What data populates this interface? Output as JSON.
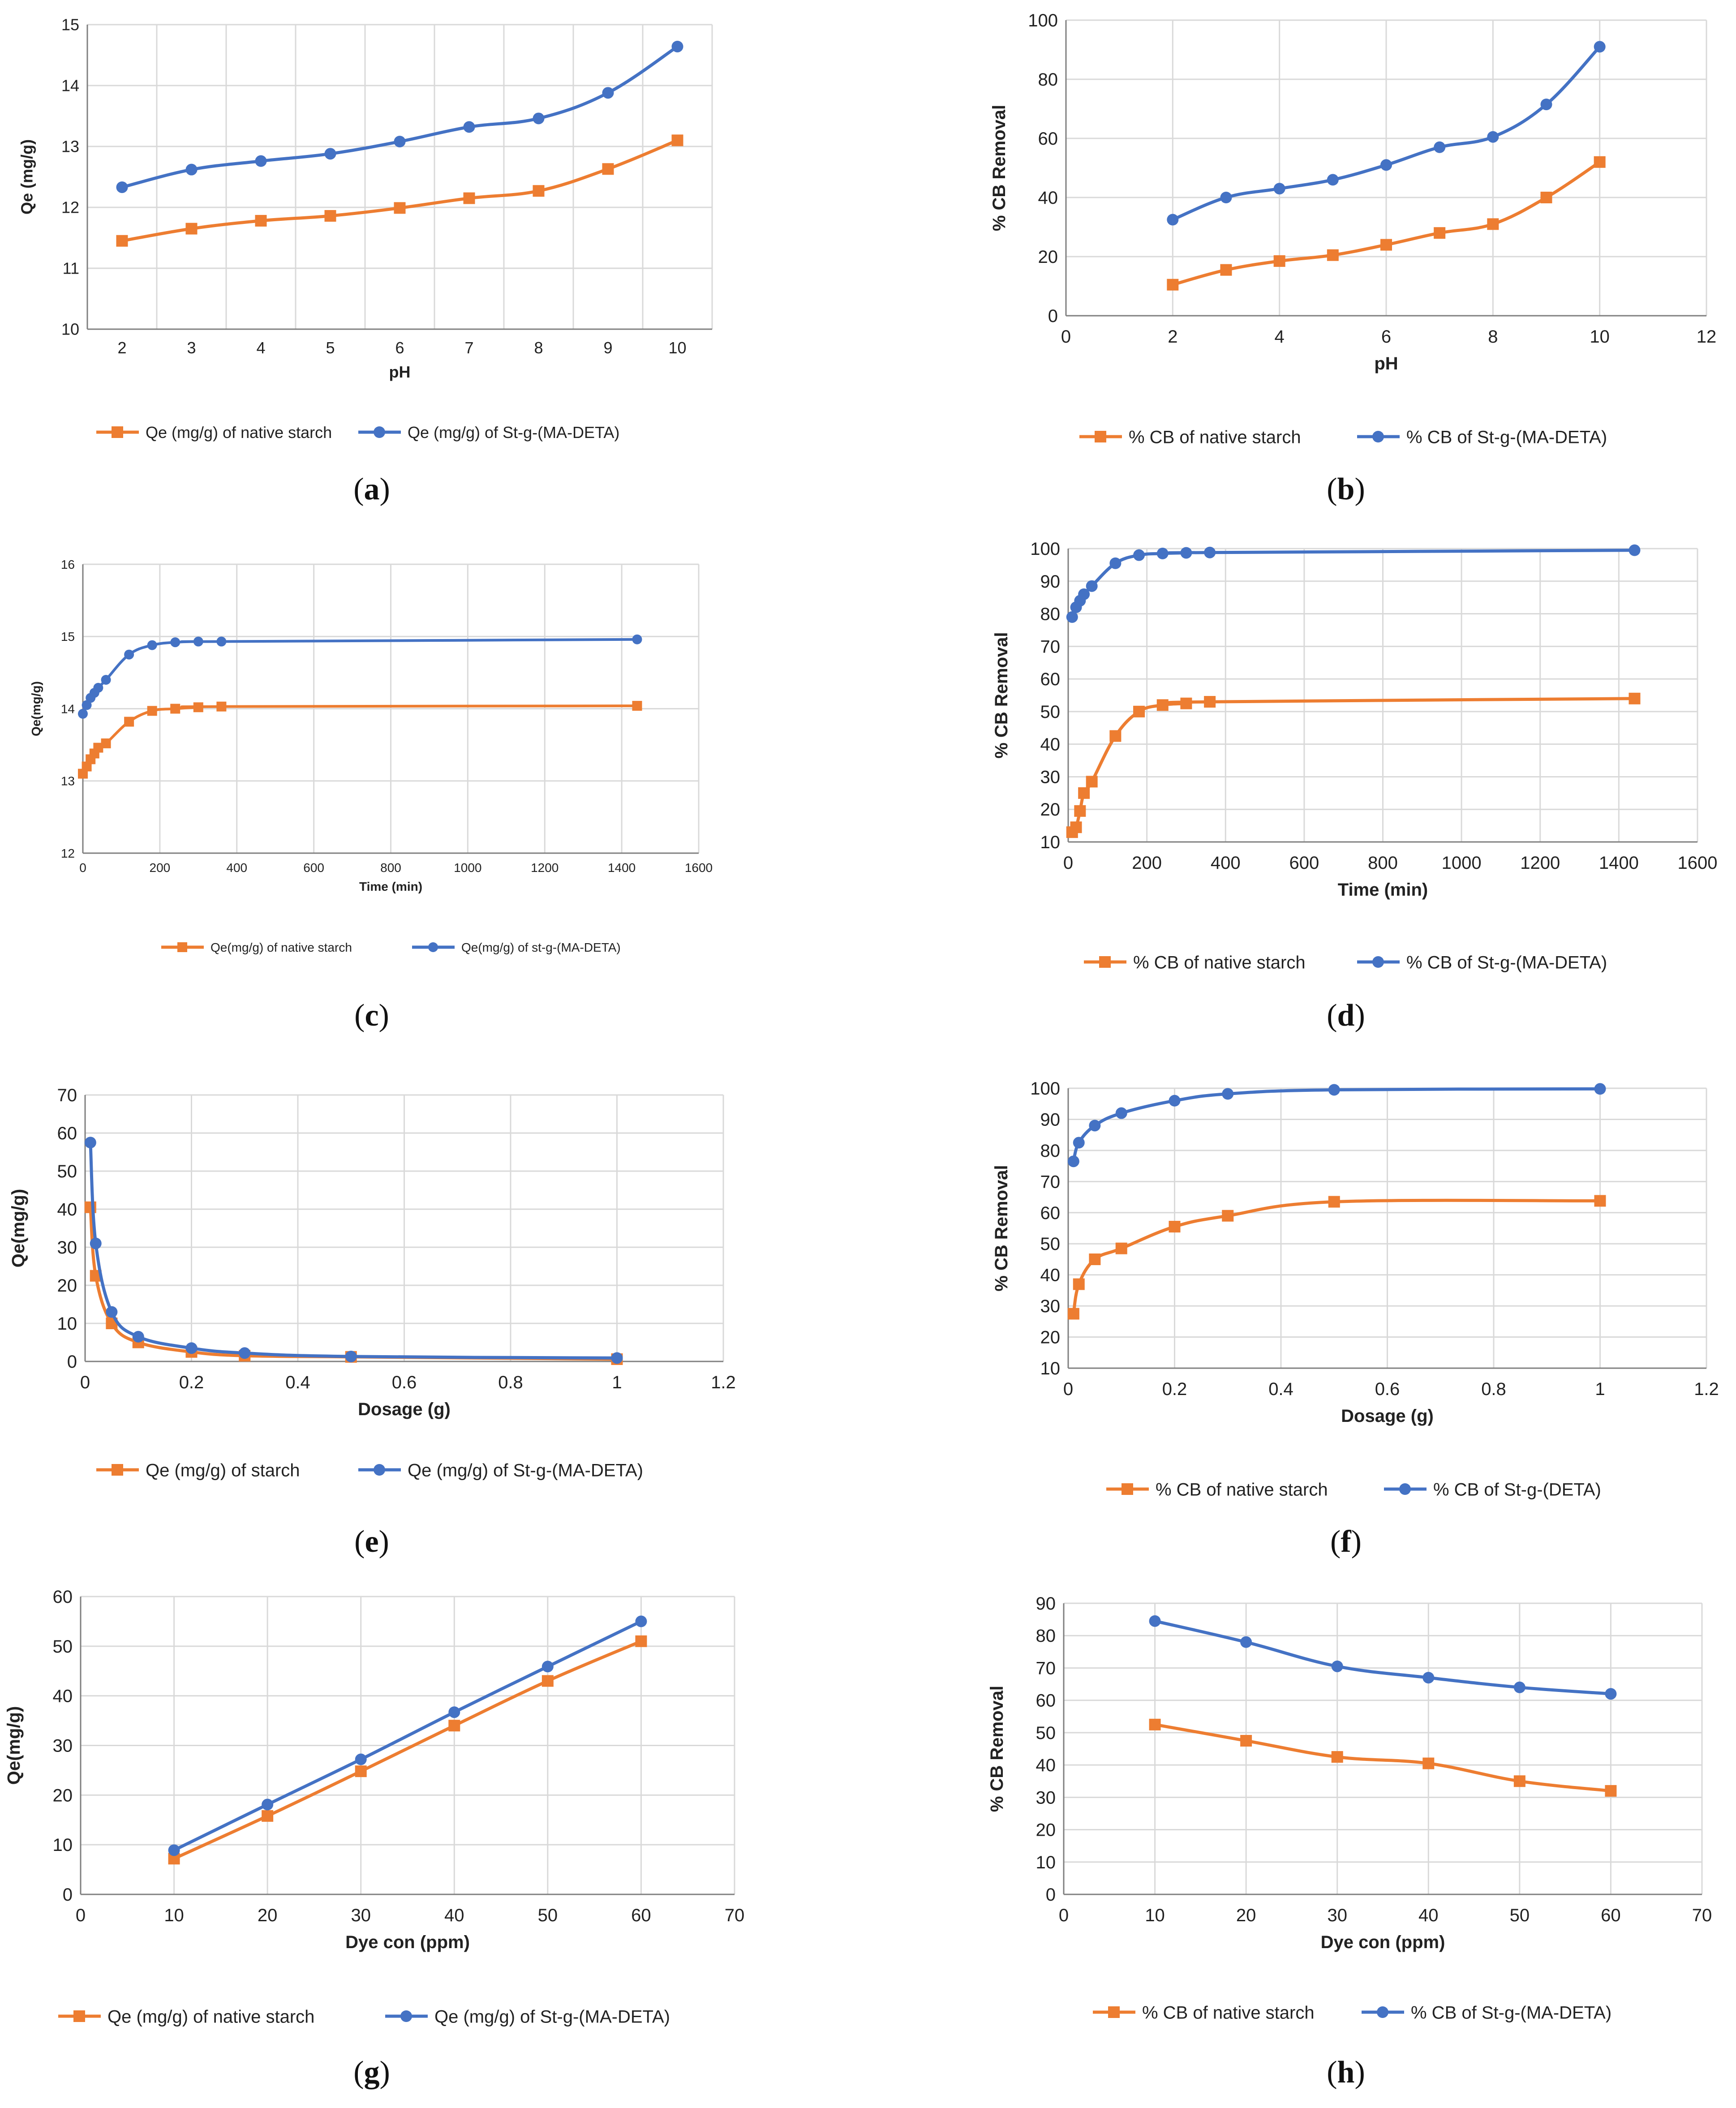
{
  "colors": {
    "native": "#ED7D31",
    "grafted": "#4472C4",
    "grid": "#D9D9D9",
    "axis": "#7F7F7F"
  },
  "chart_data": [
    {
      "id": "a",
      "type": "line",
      "panel_label": "(a)",
      "panel_letter": "a",
      "xlabel": "pH",
      "ylabel": "Qe (mg/g)",
      "xlim": [
        1.5,
        10.5
      ],
      "ylim": [
        10,
        15
      ],
      "xticks": [
        2,
        3,
        4,
        5,
        6,
        7,
        8,
        9,
        10
      ],
      "yticks": [
        10,
        11,
        12,
        13,
        14,
        15
      ],
      "xgrid": "band",
      "series": [
        {
          "name": "Qe (mg/g) of native starch",
          "marker": "square",
          "color": "#ED7D31",
          "x": [
            2,
            3,
            4,
            5,
            6,
            7,
            8,
            9,
            10
          ],
          "y": [
            11.45,
            11.65,
            11.78,
            11.86,
            11.99,
            12.15,
            12.27,
            12.63,
            13.1
          ]
        },
        {
          "name": "Qe (mg/g) of St-g-(MA-DETA)",
          "marker": "circle",
          "color": "#4472C4",
          "x": [
            2,
            3,
            4,
            5,
            6,
            7,
            8,
            9,
            10
          ],
          "y": [
            12.33,
            12.62,
            12.76,
            12.88,
            13.08,
            13.32,
            13.46,
            13.88,
            14.64
          ]
        }
      ]
    },
    {
      "id": "b",
      "type": "line",
      "panel_label": "(b)",
      "panel_letter": "b",
      "xlabel": "pH",
      "ylabel": "% CB Removal",
      "xlim": [
        0,
        12
      ],
      "ylim": [
        0,
        100
      ],
      "xticks": [
        0,
        2,
        4,
        6,
        8,
        10,
        12
      ],
      "yticks": [
        0,
        20,
        40,
        60,
        80,
        100
      ],
      "series": [
        {
          "name": "% CB of native starch",
          "marker": "square",
          "color": "#ED7D31",
          "x": [
            2,
            3,
            4,
            5,
            6,
            7,
            8,
            9,
            10
          ],
          "y": [
            10.5,
            15.5,
            18.5,
            20.5,
            24,
            28,
            31,
            40,
            52
          ]
        },
        {
          "name": "% CB of St-g-(MA-DETA)",
          "marker": "circle",
          "color": "#4472C4",
          "x": [
            2,
            3,
            4,
            5,
            6,
            7,
            8,
            9,
            10
          ],
          "y": [
            32.5,
            40,
            43,
            46,
            51,
            57,
            60.5,
            71.5,
            91
          ]
        }
      ]
    },
    {
      "id": "c",
      "type": "line",
      "panel_label": "(c)",
      "panel_letter": "c",
      "xlabel": "Time (min)",
      "ylabel": "Qe(mg/g)",
      "xlim": [
        0,
        1600
      ],
      "ylim": [
        12,
        16
      ],
      "xticks": [
        0,
        200,
        400,
        600,
        800,
        1000,
        1200,
        1400,
        1600
      ],
      "yticks": [
        12,
        13,
        14,
        15,
        16
      ],
      "series": [
        {
          "name": "Qe(mg/g) of native starch",
          "marker": "square",
          "color": "#ED7D31",
          "x": [
            0,
            10,
            20,
            30,
            40,
            60,
            120,
            180,
            240,
            300,
            360,
            1440
          ],
          "y": [
            13.1,
            13.2,
            13.3,
            13.38,
            13.46,
            13.52,
            13.82,
            13.97,
            14.0,
            14.02,
            14.03,
            14.04
          ]
        },
        {
          "name": "Qe(mg/g) of st-g-(MA-DETA)",
          "marker": "circle",
          "color": "#4472C4",
          "x": [
            0,
            10,
            20,
            30,
            40,
            60,
            120,
            180,
            240,
            300,
            360,
            1440
          ],
          "y": [
            13.93,
            14.05,
            14.15,
            14.22,
            14.29,
            14.4,
            14.75,
            14.88,
            14.92,
            14.93,
            14.93,
            14.96
          ]
        }
      ]
    },
    {
      "id": "d",
      "type": "line",
      "panel_label": "(d)",
      "panel_letter": "d",
      "xlabel": "Time (min)",
      "ylabel": "% CB Removal",
      "xlim": [
        0,
        1600
      ],
      "ylim": [
        10,
        100
      ],
      "xticks": [
        0,
        200,
        400,
        600,
        800,
        1000,
        1200,
        1400,
        1600
      ],
      "yticks": [
        10,
        20,
        30,
        40,
        50,
        60,
        70,
        80,
        90,
        100
      ],
      "series": [
        {
          "name": "% CB of native starch",
          "marker": "square",
          "color": "#ED7D31",
          "x": [
            10,
            20,
            30,
            40,
            60,
            120,
            180,
            240,
            300,
            360,
            1440
          ],
          "y": [
            13,
            14.5,
            19.5,
            25,
            28.5,
            42.5,
            50,
            52,
            52.5,
            53,
            54
          ]
        },
        {
          "name": "% CB of St-g-(MA-DETA)",
          "marker": "circle",
          "color": "#4472C4",
          "x": [
            10,
            20,
            30,
            40,
            60,
            120,
            180,
            240,
            300,
            360,
            1440
          ],
          "y": [
            79,
            82,
            84,
            86,
            88.5,
            95.5,
            98,
            98.5,
            98.7,
            98.8,
            99.5
          ]
        }
      ]
    },
    {
      "id": "e",
      "type": "line",
      "panel_label": "(e)",
      "panel_letter": "e",
      "xlabel": "Dosage (g)",
      "ylabel": "Qe(mg/g)",
      "xlim": [
        0,
        1.2
      ],
      "ylim": [
        0,
        70
      ],
      "xticks": [
        0,
        0.2,
        0.4,
        0.6,
        0.8,
        1,
        1.2
      ],
      "yticks": [
        0,
        10,
        20,
        30,
        40,
        50,
        60,
        70
      ],
      "series": [
        {
          "name": "Qe (mg/g) of starch",
          "marker": "square",
          "color": "#ED7D31",
          "x": [
            0.01,
            0.02,
            0.05,
            0.1,
            0.2,
            0.3,
            0.5,
            1
          ],
          "y": [
            40.5,
            22.5,
            10,
            5,
            2.5,
            1.5,
            1.2,
            0.6
          ]
        },
        {
          "name": "Qe (mg/g) of St-g-(MA-DETA)",
          "marker": "circle",
          "color": "#4472C4",
          "x": [
            0.01,
            0.02,
            0.05,
            0.1,
            0.2,
            0.3,
            0.5,
            1
          ],
          "y": [
            57.5,
            31,
            13,
            6.5,
            3.5,
            2.2,
            1.3,
            0.9
          ]
        }
      ]
    },
    {
      "id": "f",
      "type": "line",
      "panel_label": "(f)",
      "panel_letter": "f",
      "xlabel": "Dosage (g)",
      "ylabel": "% CB Removal",
      "xlim": [
        0,
        1.2
      ],
      "ylim": [
        10,
        100
      ],
      "xticks": [
        0,
        0.2,
        0.4,
        0.6,
        0.8,
        1,
        1.2
      ],
      "yticks": [
        10,
        20,
        30,
        40,
        50,
        60,
        70,
        80,
        90,
        100
      ],
      "series": [
        {
          "name": "% CB of native starch",
          "marker": "square",
          "color": "#ED7D31",
          "x": [
            0.01,
            0.02,
            0.05,
            0.1,
            0.2,
            0.3,
            0.5,
            1
          ],
          "y": [
            27.5,
            37,
            45,
            48.5,
            55.5,
            59,
            63.5,
            63.8
          ]
        },
        {
          "name": "% CB of St-g-(DETA)",
          "marker": "circle",
          "color": "#4472C4",
          "x": [
            0.01,
            0.02,
            0.05,
            0.1,
            0.2,
            0.3,
            0.5,
            1
          ],
          "y": [
            76.5,
            82.5,
            88,
            92,
            96,
            98.2,
            99.5,
            99.8
          ]
        }
      ]
    },
    {
      "id": "g",
      "type": "line",
      "panel_label": "(g)",
      "panel_letter": "g",
      "xlabel": "Dye con (ppm)",
      "ylabel": "Qe(mg/g)",
      "xlim": [
        0,
        70
      ],
      "ylim": [
        0,
        60
      ],
      "xticks": [
        0,
        10,
        20,
        30,
        40,
        50,
        60,
        70
      ],
      "yticks": [
        0,
        10,
        20,
        30,
        40,
        50,
        60
      ],
      "series": [
        {
          "name": "Qe (mg/g) of native starch",
          "marker": "square",
          "color": "#ED7D31",
          "x": [
            10,
            20,
            30,
            40,
            50,
            60
          ],
          "y": [
            7.2,
            15.8,
            24.8,
            34,
            43,
            51
          ]
        },
        {
          "name": "Qe (mg/g) of St-g-(MA-DETA)",
          "marker": "circle",
          "color": "#4472C4",
          "x": [
            10,
            20,
            30,
            40,
            50,
            60
          ],
          "y": [
            8.9,
            18.1,
            27.2,
            36.7,
            45.9,
            55
          ]
        }
      ]
    },
    {
      "id": "h",
      "type": "line",
      "panel_label": "(h)",
      "panel_letter": "h",
      "xlabel": "Dye con (ppm)",
      "ylabel": "% CB Removal",
      "xlim": [
        0,
        70
      ],
      "ylim": [
        0,
        90
      ],
      "xticks": [
        0,
        10,
        20,
        30,
        40,
        50,
        60,
        70
      ],
      "yticks": [
        0,
        10,
        20,
        30,
        40,
        50,
        60,
        70,
        80,
        90
      ],
      "series": [
        {
          "name": "% CB of native starch",
          "marker": "square",
          "color": "#ED7D31",
          "x": [
            10,
            20,
            30,
            40,
            50,
            60
          ],
          "y": [
            52.5,
            47.5,
            42.5,
            40.5,
            35,
            32
          ]
        },
        {
          "name": "% CB of St-g-(MA-DETA)",
          "marker": "circle",
          "color": "#4472C4",
          "x": [
            10,
            20,
            30,
            40,
            50,
            60
          ],
          "y": [
            84.5,
            78,
            70.5,
            67,
            64,
            62
          ]
        }
      ]
    }
  ]
}
